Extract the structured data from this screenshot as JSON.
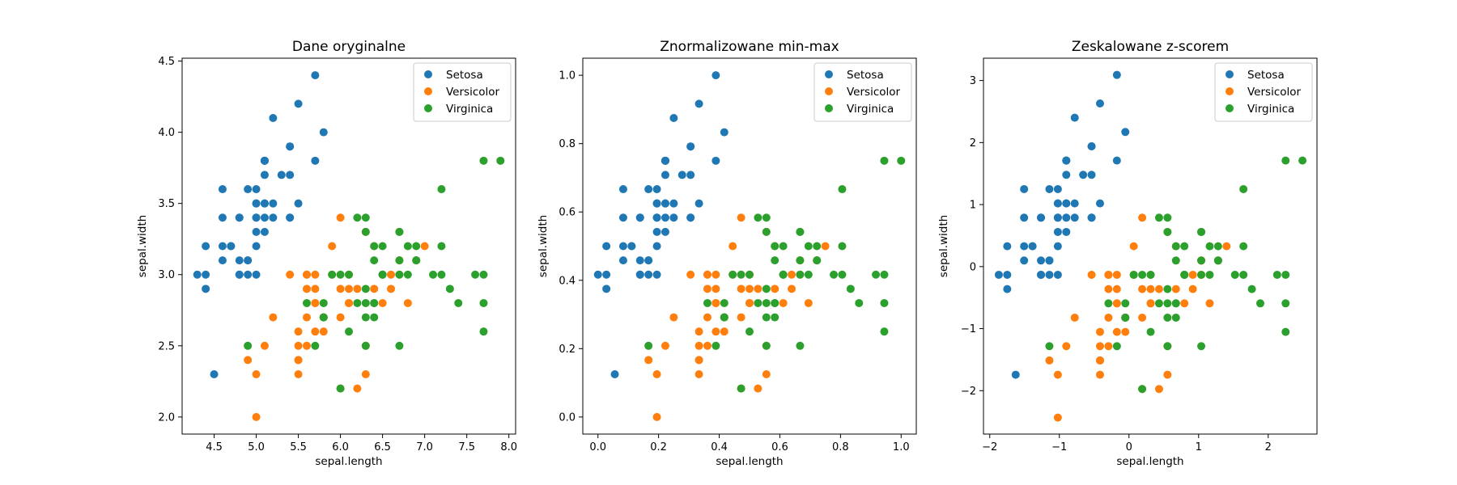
{
  "colors": {
    "setosa": "#1f77b4",
    "versicolor": "#ff7f0e",
    "virginica": "#2ca02c"
  },
  "chart_data": [
    {
      "type": "scatter",
      "title": "Dane oryginalne",
      "xlabel": "sepal.length",
      "ylabel": "sepal.width",
      "xlim": [
        4.12,
        8.08
      ],
      "ylim": [
        1.88,
        4.52
      ],
      "xticks": [
        "4.5",
        "5.0",
        "5.5",
        "6.0",
        "6.5",
        "7.0",
        "7.5",
        "8.0"
      ],
      "yticks": [
        "2.0",
        "2.5",
        "3.0",
        "3.5",
        "4.0",
        "4.5"
      ],
      "legend": "top-right",
      "series": [
        {
          "name": "Setosa",
          "color": "#1f77b4",
          "points": [
            [
              5.1,
              3.5
            ],
            [
              4.9,
              3.0
            ],
            [
              4.7,
              3.2
            ],
            [
              4.6,
              3.1
            ],
            [
              5.0,
              3.6
            ],
            [
              5.4,
              3.9
            ],
            [
              4.6,
              3.4
            ],
            [
              5.0,
              3.4
            ],
            [
              4.4,
              2.9
            ],
            [
              4.9,
              3.1
            ],
            [
              5.4,
              3.7
            ],
            [
              4.8,
              3.4
            ],
            [
              4.8,
              3.0
            ],
            [
              4.3,
              3.0
            ],
            [
              5.8,
              4.0
            ],
            [
              5.7,
              4.4
            ],
            [
              5.4,
              3.9
            ],
            [
              5.1,
              3.5
            ],
            [
              5.7,
              3.8
            ],
            [
              5.1,
              3.8
            ],
            [
              5.4,
              3.4
            ],
            [
              5.1,
              3.7
            ],
            [
              4.6,
              3.6
            ],
            [
              5.1,
              3.3
            ],
            [
              4.8,
              3.4
            ],
            [
              5.0,
              3.0
            ],
            [
              5.0,
              3.4
            ],
            [
              5.2,
              3.5
            ],
            [
              5.2,
              3.4
            ],
            [
              4.7,
              3.2
            ],
            [
              4.8,
              3.1
            ],
            [
              5.4,
              3.4
            ],
            [
              5.2,
              4.1
            ],
            [
              5.5,
              4.2
            ],
            [
              4.9,
              3.1
            ],
            [
              5.0,
              3.2
            ],
            [
              5.5,
              3.5
            ],
            [
              4.9,
              3.6
            ],
            [
              4.4,
              3.0
            ],
            [
              5.1,
              3.4
            ],
            [
              5.0,
              3.5
            ],
            [
              4.5,
              2.3
            ],
            [
              4.4,
              3.2
            ],
            [
              5.0,
              3.5
            ],
            [
              5.1,
              3.8
            ],
            [
              4.8,
              3.0
            ],
            [
              5.1,
              3.8
            ],
            [
              4.6,
              3.2
            ],
            [
              5.3,
              3.7
            ],
            [
              5.0,
              3.3
            ]
          ]
        },
        {
          "name": "Versicolor",
          "color": "#ff7f0e",
          "points": [
            [
              7.0,
              3.2
            ],
            [
              6.4,
              3.2
            ],
            [
              6.9,
              3.1
            ],
            [
              5.5,
              2.3
            ],
            [
              6.5,
              2.8
            ],
            [
              5.7,
              2.8
            ],
            [
              6.3,
              3.3
            ],
            [
              4.9,
              2.4
            ],
            [
              6.6,
              2.9
            ],
            [
              5.2,
              2.7
            ],
            [
              5.0,
              2.0
            ],
            [
              5.9,
              3.0
            ],
            [
              6.0,
              2.2
            ],
            [
              6.1,
              2.9
            ],
            [
              5.6,
              2.9
            ],
            [
              6.7,
              3.1
            ],
            [
              5.6,
              3.0
            ],
            [
              5.8,
              2.7
            ],
            [
              6.2,
              2.2
            ],
            [
              5.6,
              2.5
            ],
            [
              5.9,
              3.2
            ],
            [
              6.1,
              2.8
            ],
            [
              6.3,
              2.5
            ],
            [
              6.1,
              2.8
            ],
            [
              6.4,
              2.9
            ],
            [
              6.6,
              3.0
            ],
            [
              6.8,
              2.8
            ],
            [
              6.7,
              3.0
            ],
            [
              6.0,
              2.9
            ],
            [
              5.7,
              2.6
            ],
            [
              5.5,
              2.4
            ],
            [
              5.5,
              2.4
            ],
            [
              5.8,
              2.7
            ],
            [
              6.0,
              2.7
            ],
            [
              5.4,
              3.0
            ],
            [
              6.0,
              3.4
            ],
            [
              6.7,
              3.1
            ],
            [
              6.3,
              2.3
            ],
            [
              5.6,
              3.0
            ],
            [
              5.5,
              2.5
            ],
            [
              5.5,
              2.6
            ],
            [
              6.1,
              3.0
            ],
            [
              5.8,
              2.6
            ],
            [
              5.0,
              2.3
            ],
            [
              5.6,
              2.7
            ],
            [
              5.7,
              3.0
            ],
            [
              5.7,
              2.9
            ],
            [
              6.2,
              2.9
            ],
            [
              5.1,
              2.5
            ],
            [
              5.7,
              2.8
            ]
          ]
        },
        {
          "name": "Virginica",
          "color": "#2ca02c",
          "points": [
            [
              6.3,
              3.3
            ],
            [
              5.8,
              2.7
            ],
            [
              7.1,
              3.0
            ],
            [
              6.3,
              2.9
            ],
            [
              6.5,
              3.0
            ],
            [
              7.6,
              3.0
            ],
            [
              4.9,
              2.5
            ],
            [
              7.3,
              2.9
            ],
            [
              6.7,
              2.5
            ],
            [
              7.2,
              3.6
            ],
            [
              6.5,
              3.2
            ],
            [
              6.4,
              2.7
            ],
            [
              6.8,
              3.0
            ],
            [
              5.7,
              2.5
            ],
            [
              5.8,
              2.8
            ],
            [
              6.4,
              3.2
            ],
            [
              6.5,
              3.0
            ],
            [
              7.7,
              3.8
            ],
            [
              7.7,
              2.6
            ],
            [
              6.0,
              2.2
            ],
            [
              6.9,
              3.2
            ],
            [
              5.6,
              2.8
            ],
            [
              7.7,
              2.8
            ],
            [
              6.3,
              2.7
            ],
            [
              6.7,
              3.3
            ],
            [
              7.2,
              3.2
            ],
            [
              6.2,
              2.8
            ],
            [
              6.1,
              3.0
            ],
            [
              6.4,
              2.8
            ],
            [
              7.2,
              3.0
            ],
            [
              7.4,
              2.8
            ],
            [
              7.9,
              3.8
            ],
            [
              6.4,
              2.8
            ],
            [
              6.3,
              2.8
            ],
            [
              6.1,
              2.6
            ],
            [
              7.7,
              3.0
            ],
            [
              6.3,
              3.4
            ],
            [
              6.4,
              3.1
            ],
            [
              6.0,
              3.0
            ],
            [
              6.9,
              3.1
            ],
            [
              6.7,
              3.1
            ],
            [
              6.9,
              3.1
            ],
            [
              5.8,
              2.7
            ],
            [
              6.8,
              3.2
            ],
            [
              6.7,
              3.3
            ],
            [
              6.7,
              3.0
            ],
            [
              6.3,
              2.5
            ],
            [
              6.5,
              3.0
            ],
            [
              6.2,
              3.4
            ],
            [
              5.9,
              3.0
            ]
          ]
        }
      ]
    },
    {
      "type": "scatter",
      "title": "Znormalizowane min-max",
      "xlabel": "sepal.length",
      "ylabel": "sepal.width",
      "xlim": [
        -0.05,
        1.05
      ],
      "ylim": [
        -0.05,
        1.05
      ],
      "xticks": [
        "0.0",
        "0.2",
        "0.4",
        "0.6",
        "0.8",
        "1.0"
      ],
      "yticks": [
        "0.0",
        "0.2",
        "0.4",
        "0.6",
        "0.8",
        "1.0"
      ],
      "legend": "top-right",
      "transform": "minmax"
    },
    {
      "type": "scatter",
      "title": "Zeskalowane z-scorem",
      "xlabel": "sepal.length",
      "ylabel": "sepal.width",
      "xlim": [
        -2.09,
        2.7
      ],
      "ylim": [
        -2.7,
        3.36
      ],
      "xticks": [
        "−2",
        "−1",
        "0",
        "1",
        "2"
      ],
      "yticks": [
        "−2",
        "−1",
        "0",
        "1",
        "2",
        "3"
      ],
      "legend": "top-right",
      "transform": "zscore"
    }
  ]
}
